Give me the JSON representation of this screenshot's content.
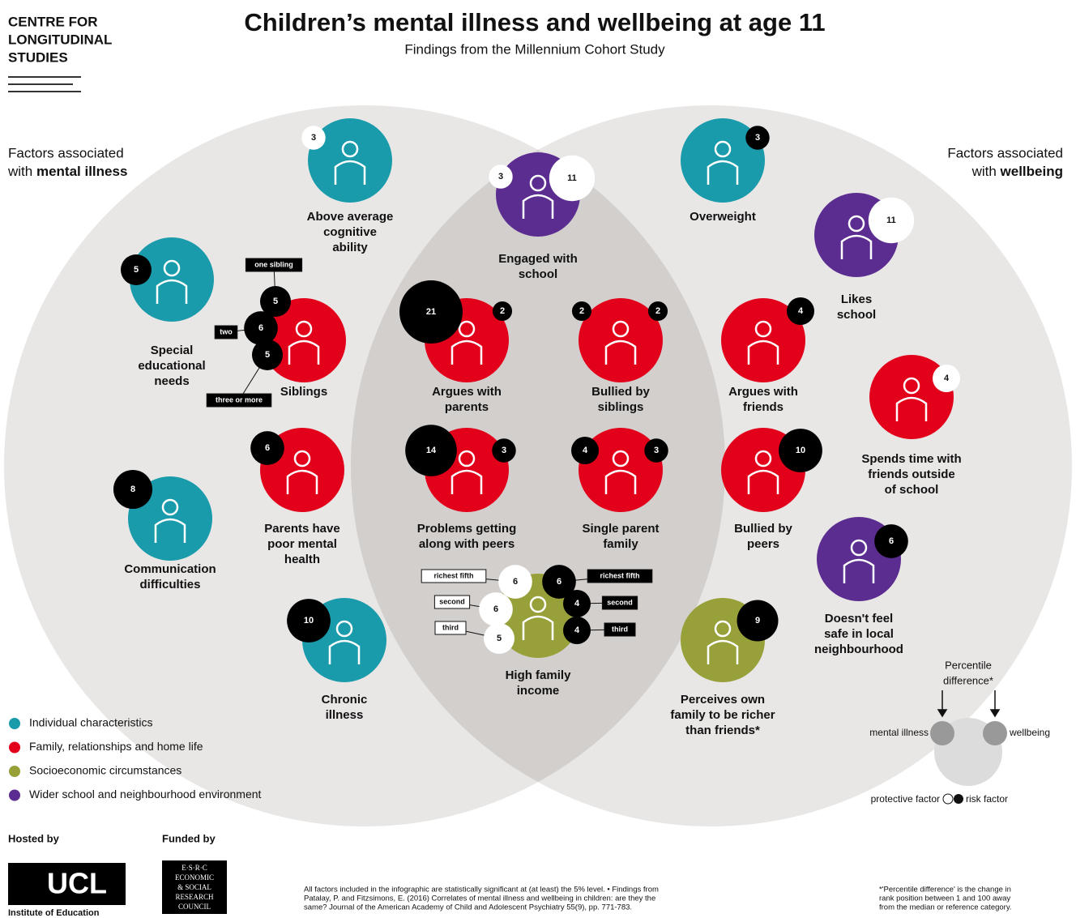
{
  "header": {
    "org": [
      "CENTRE FOR",
      "LONGITUDINAL",
      "STUDIES"
    ],
    "title": "Children’s mental illness and wellbeing at age 11",
    "subtitle": "Findings from the Millennium Cohort Study"
  },
  "sides": {
    "left": {
      "text": "Factors associated",
      "bold_prefix": "with ",
      "bold": "mental illness"
    },
    "right": {
      "text": "Factors associated",
      "bold_prefix": "with ",
      "bold": "wellbeing"
    }
  },
  "categories": [
    {
      "name": "Individual characteristics",
      "color": "#1a9bab"
    },
    {
      "name": "Family, relationships and home life",
      "color": "#e2001a"
    },
    {
      "name": "Socioeconomic circumstances",
      "color": "#98a03a"
    },
    {
      "name": "Wider school and neighbourhood environment",
      "color": "#5c2d91"
    }
  ],
  "factors": [
    {
      "label": [
        "Above average",
        "cognitive",
        "ability"
      ],
      "category": 0,
      "mental_illness": {
        "type": "protective",
        "value": 3
      }
    },
    {
      "label": [
        "Engaged with",
        "school"
      ],
      "category": 3,
      "mental_illness": {
        "type": "protective",
        "value": 3
      },
      "wellbeing": {
        "type": "protective",
        "value": 11
      }
    },
    {
      "label": [
        "Overweight"
      ],
      "category": 0,
      "wellbeing": {
        "type": "risk",
        "value": 3
      }
    },
    {
      "label": [
        "Likes",
        "school"
      ],
      "category": 3,
      "wellbeing": {
        "type": "protective",
        "value": 11
      }
    },
    {
      "label": [
        "Special",
        "educational",
        "needs"
      ],
      "category": 0,
      "mental_illness": {
        "type": "risk",
        "value": 5
      }
    },
    {
      "label": [
        "Siblings"
      ],
      "category": 1,
      "mental_illness": {
        "type": "risk",
        "levels": [
          {
            "label": "one sibling",
            "value": 5
          },
          {
            "label": "two",
            "value": 6
          },
          {
            "label": "three or more",
            "value": 5
          }
        ]
      }
    },
    {
      "label": [
        "Argues with",
        "parents"
      ],
      "category": 1,
      "mental_illness": {
        "type": "risk",
        "value": 21
      },
      "wellbeing": {
        "type": "risk",
        "value": 2
      }
    },
    {
      "label": [
        "Bullied by",
        "siblings"
      ],
      "category": 1,
      "mental_illness": {
        "type": "risk",
        "value": 2
      },
      "wellbeing": {
        "type": "risk",
        "value": 2
      }
    },
    {
      "label": [
        "Argues with",
        "friends"
      ],
      "category": 1,
      "wellbeing": {
        "type": "risk",
        "value": 4
      }
    },
    {
      "label": [
        "Spends time with",
        "friends outside",
        "of school"
      ],
      "category": 1,
      "wellbeing": {
        "type": "protective",
        "value": 4
      }
    },
    {
      "label": [
        "Communication",
        "difficulties"
      ],
      "category": 0,
      "mental_illness": {
        "type": "risk",
        "value": 8
      }
    },
    {
      "label": [
        "Parents have",
        "poor mental",
        "health"
      ],
      "category": 1,
      "mental_illness": {
        "type": "risk",
        "value": 6
      }
    },
    {
      "label": [
        "Problems getting",
        "along with peers"
      ],
      "category": 1,
      "mental_illness": {
        "type": "risk",
        "value": 14
      },
      "wellbeing": {
        "type": "risk",
        "value": 3
      }
    },
    {
      "label": [
        "Single parent",
        "family"
      ],
      "category": 1,
      "mental_illness": {
        "type": "risk",
        "value": 4
      },
      "wellbeing": {
        "type": "risk",
        "value": 3
      }
    },
    {
      "label": [
        "Bullied by",
        "peers"
      ],
      "category": 1,
      "wellbeing": {
        "type": "risk",
        "value": 10
      }
    },
    {
      "label": [
        "Doesn't feel",
        "safe in local",
        "neighbourhood"
      ],
      "category": 3,
      "wellbeing": {
        "type": "risk",
        "value": 6
      }
    },
    {
      "label": [
        "Chronic",
        "illness"
      ],
      "category": 0,
      "mental_illness": {
        "type": "risk",
        "value": 10
      }
    },
    {
      "label": [
        "High family",
        "income"
      ],
      "category": 2,
      "mental_illness": {
        "type": "protective",
        "levels": [
          {
            "label": "richest fifth",
            "value": 6
          },
          {
            "label": "second",
            "value": 6
          },
          {
            "label": "third",
            "value": 5
          }
        ]
      },
      "wellbeing": {
        "type": "risk",
        "levels": [
          {
            "label": "richest fifth",
            "value": 6
          },
          {
            "label": "second",
            "value": 4
          },
          {
            "label": "third",
            "value": 4
          }
        ]
      }
    },
    {
      "label": [
        "Perceives own",
        "family to be richer",
        "than friends*"
      ],
      "category": 2,
      "wellbeing": {
        "type": "risk",
        "value": 9
      }
    }
  ],
  "key": {
    "title": [
      "Percentile",
      "difference*"
    ],
    "left": "mental illness",
    "right": "wellbeing",
    "protective": "protective factor",
    "risk": "risk factor"
  },
  "footer": {
    "hosted_by": "Hosted by",
    "funded_by": "Funded by",
    "ucl": "UCL",
    "ucl_sub": "Institute of Education",
    "esrc": [
      "E·S·R·C",
      "ECONOMIC",
      "& SOCIAL",
      "RESEARCH",
      "COUNCIL"
    ],
    "note": [
      "All factors included in the infographic are statistically significant at (at least) the 5% level. • Findings from",
      "Patalay, P. and Fitzsimons, E. (2016) Correlates of mental illness and wellbeing in children: are they the",
      "same? Journal of the American Academy of Child and Adolescent Psychiatry 55(9), pp. 771-783."
    ],
    "footnote": [
      "*'Percentile difference' is the change in",
      "rank position between 1 and 100 away",
      "from the median or reference category."
    ]
  }
}
